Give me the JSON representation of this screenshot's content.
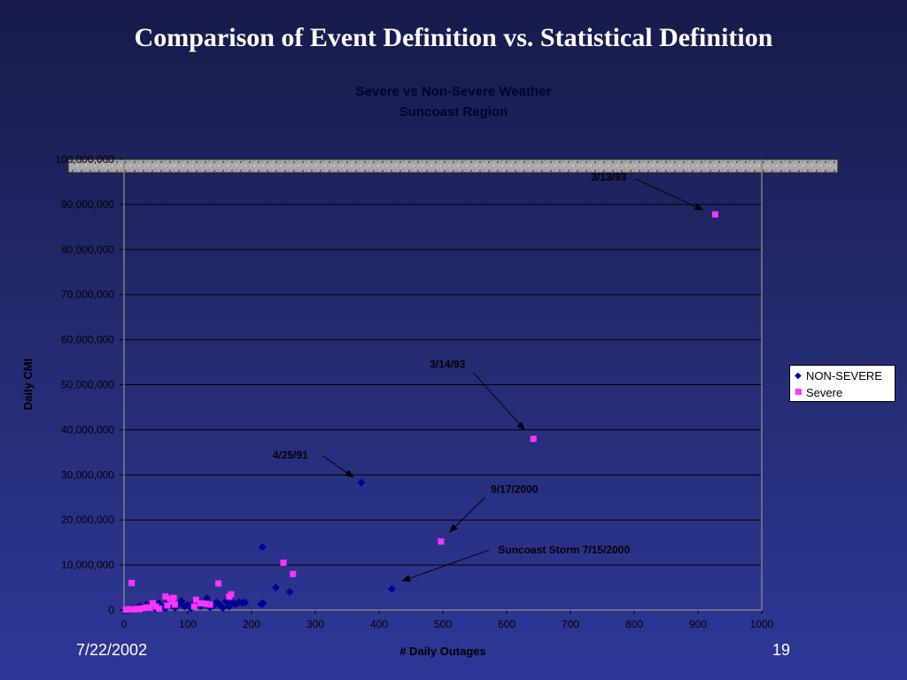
{
  "slide": {
    "title": "Comparison of Event Definition vs. Statistical Definition",
    "date": "7/22/2002",
    "page": "19"
  },
  "colors": {
    "non_severe": "#000099",
    "severe": "#ff33ff",
    "axis": "#000000",
    "gridline": "#000000"
  },
  "chart_data": {
    "type": "scatter",
    "title": "Severe vs Non-Severe Weather",
    "subtitle": "Suncoast Region",
    "xlabel": "# Daily Outages",
    "ylabel": "Daily CMI",
    "xlim": [
      0,
      1000
    ],
    "ylim": [
      0,
      100000000
    ],
    "x_ticks": [
      "0",
      "100",
      "200",
      "300",
      "400",
      "500",
      "600",
      "700",
      "800",
      "900",
      "1000"
    ],
    "y_ticks": [
      "0",
      "10,000,000",
      "20,000,000",
      "30,000,000",
      "40,000,000",
      "50,000,000",
      "60,000,000",
      "70,000,000",
      "80,000,000",
      "90,000,000",
      "100,000,000"
    ],
    "grid": true,
    "legend_position": "right",
    "series": [
      {
        "name": "NON-SEVERE",
        "marker": "diamond",
        "points": [
          [
            5,
            100000
          ],
          [
            10,
            150000
          ],
          [
            15,
            300000
          ],
          [
            20,
            500000
          ],
          [
            25,
            800000
          ],
          [
            30,
            200000
          ],
          [
            35,
            1200000
          ],
          [
            40,
            600000
          ],
          [
            45,
            900000
          ],
          [
            50,
            300000
          ],
          [
            55,
            1500000
          ],
          [
            60,
            700000
          ],
          [
            65,
            400000
          ],
          [
            70,
            1800000
          ],
          [
            75,
            1000000
          ],
          [
            80,
            500000
          ],
          [
            85,
            1300000
          ],
          [
            90,
            2000000
          ],
          [
            95,
            800000
          ],
          [
            100,
            1100000
          ],
          [
            105,
            400000
          ],
          [
            110,
            1600000
          ],
          [
            115,
            2200000
          ],
          [
            120,
            900000
          ],
          [
            125,
            1400000
          ],
          [
            130,
            2600000
          ],
          [
            135,
            600000
          ],
          [
            140,
            1000000
          ],
          [
            145,
            1700000
          ],
          [
            150,
            1200000
          ],
          [
            155,
            500000
          ],
          [
            160,
            1900000
          ],
          [
            165,
            800000
          ],
          [
            170,
            1500000
          ],
          [
            175,
            1300000
          ],
          [
            180,
            1700000
          ],
          [
            185,
            1600000
          ],
          [
            190,
            1700000
          ],
          [
            215,
            1300000
          ],
          [
            218,
            1500000
          ],
          [
            217,
            14000000
          ],
          [
            238,
            5000000
          ],
          [
            260,
            4000000
          ],
          [
            372,
            28300000
          ],
          [
            420,
            4700000
          ]
        ]
      },
      {
        "name": "Severe",
        "marker": "square",
        "points": [
          [
            3,
            100000
          ],
          [
            8,
            200000
          ],
          [
            12,
            6000000
          ],
          [
            15,
            150000
          ],
          [
            20,
            300000
          ],
          [
            25,
            200000
          ],
          [
            30,
            400000
          ],
          [
            35,
            600000
          ],
          [
            40,
            500000
          ],
          [
            45,
            1500000
          ],
          [
            50,
            800000
          ],
          [
            55,
            300000
          ],
          [
            65,
            3000000
          ],
          [
            68,
            1000000
          ],
          [
            72,
            2500000
          ],
          [
            75,
            1800000
          ],
          [
            78,
            2700000
          ],
          [
            80,
            1200000
          ],
          [
            110,
            800000
          ],
          [
            113,
            2300000
          ],
          [
            120,
            1500000
          ],
          [
            128,
            1400000
          ],
          [
            135,
            1200000
          ],
          [
            148,
            5900000
          ],
          [
            165,
            3000000
          ],
          [
            168,
            3500000
          ],
          [
            250,
            10500000
          ],
          [
            265,
            8000000
          ],
          [
            497,
            15200000
          ],
          [
            642,
            38000000
          ],
          [
            927,
            87800000
          ]
        ]
      }
    ],
    "annotations": [
      {
        "text": "3/13/93",
        "x": 927,
        "y": 87800000
      },
      {
        "text": "3/14/93",
        "x": 642,
        "y": 38000000
      },
      {
        "text": "4/25/91",
        "x": 372,
        "y": 28300000
      },
      {
        "text": "9/17/2000",
        "x": 497,
        "y": 15200000
      },
      {
        "text": "Suncoast Storm 7/15/2000",
        "x": 420,
        "y": 4700000
      }
    ]
  }
}
